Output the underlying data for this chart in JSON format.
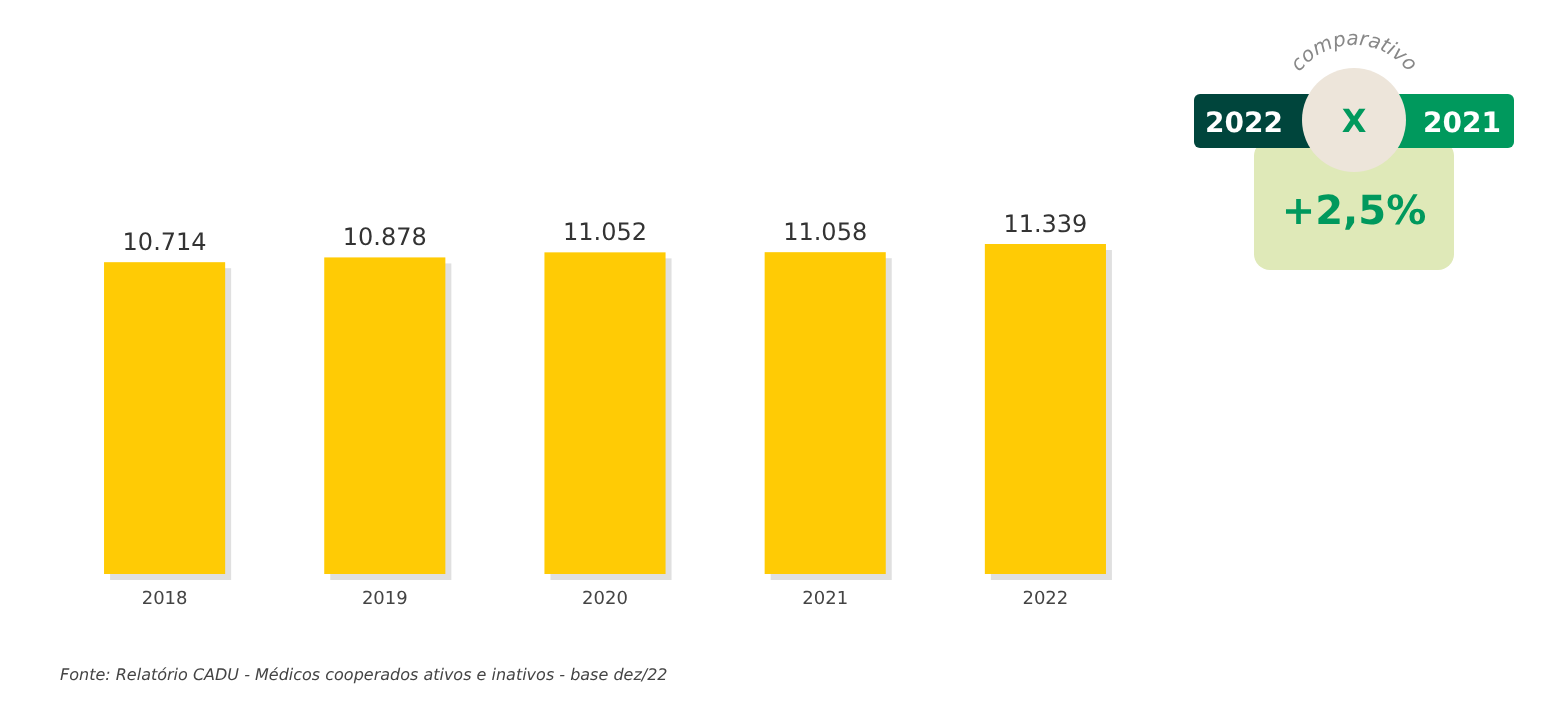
{
  "chart_data": {
    "type": "bar",
    "categories": [
      "2018",
      "2019",
      "2020",
      "2021",
      "2022"
    ],
    "values": [
      10714,
      10878,
      11052,
      11058,
      11339
    ],
    "color": "#ffcb05",
    "data_labels": true,
    "value_labels": [
      "10.714",
      "10.878",
      "11.052",
      "11.058",
      "11.339"
    ],
    "annotations": [
      "comparativo",
      "2022",
      "X",
      "2021",
      "+2,5%",
      "Fonte: Relatório CADU - Médicos cooperados ativos e inativos - base dez/22"
    ]
  }
}
